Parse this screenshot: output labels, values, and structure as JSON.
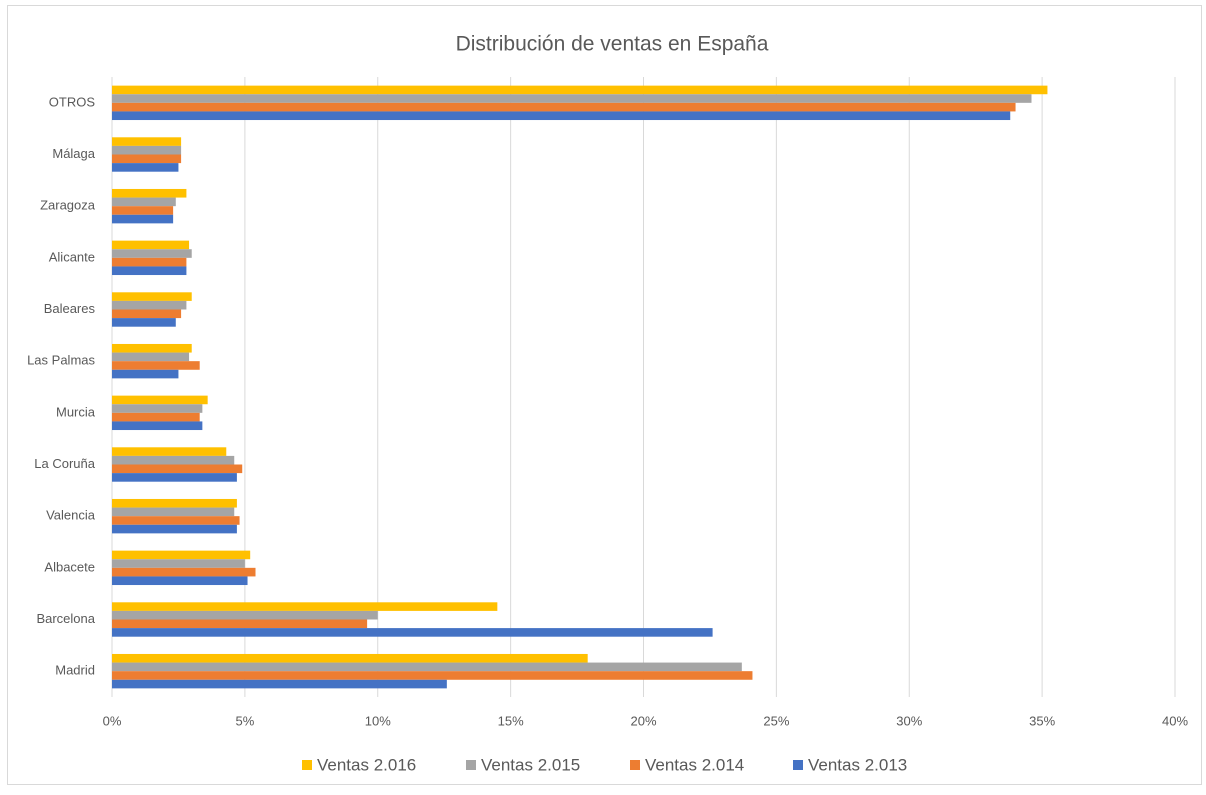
{
  "chart_data": {
    "type": "hbar",
    "title": "Distribución de ventas en España",
    "categories": [
      "OTROS",
      "Málaga",
      "Zaragoza",
      "Alicante",
      "Baleares",
      "Las Palmas",
      "Murcia",
      "La Coruña",
      "Valencia",
      "Albacete",
      "Barcelona",
      "Madrid"
    ],
    "series": [
      {
        "name": "Ventas 2.016",
        "color": "#ffc000",
        "values": [
          35.2,
          2.6,
          2.8,
          2.9,
          3.0,
          3.0,
          3.6,
          4.3,
          4.7,
          5.2,
          14.5,
          17.9
        ]
      },
      {
        "name": "Ventas 2.015",
        "color": "#a5a5a5",
        "values": [
          34.6,
          2.6,
          2.4,
          3.0,
          2.8,
          2.9,
          3.4,
          4.6,
          4.6,
          5.0,
          10.0,
          23.7
        ]
      },
      {
        "name": "Ventas 2.014",
        "color": "#ed7d31",
        "values": [
          34.0,
          2.6,
          2.3,
          2.8,
          2.6,
          3.3,
          3.3,
          4.9,
          4.8,
          5.4,
          9.6,
          24.1
        ]
      },
      {
        "name": "Ventas 2.013",
        "color": "#4472c4",
        "values": [
          33.8,
          2.5,
          2.3,
          2.8,
          2.4,
          2.5,
          3.4,
          4.7,
          4.7,
          5.1,
          22.6,
          12.6
        ]
      }
    ],
    "xlim": [
      0,
      40
    ],
    "xticks": [
      {
        "value": 0,
        "label": "0%"
      },
      {
        "value": 5,
        "label": "5%"
      },
      {
        "value": 10,
        "label": "10%"
      },
      {
        "value": 15,
        "label": "15%"
      },
      {
        "value": 20,
        "label": "20%"
      },
      {
        "value": 25,
        "label": "25%"
      },
      {
        "value": 30,
        "label": "30%"
      },
      {
        "value": 35,
        "label": "35%"
      },
      {
        "value": 40,
        "label": "40%"
      }
    ],
    "grid": true,
    "legend": "bottom"
  }
}
